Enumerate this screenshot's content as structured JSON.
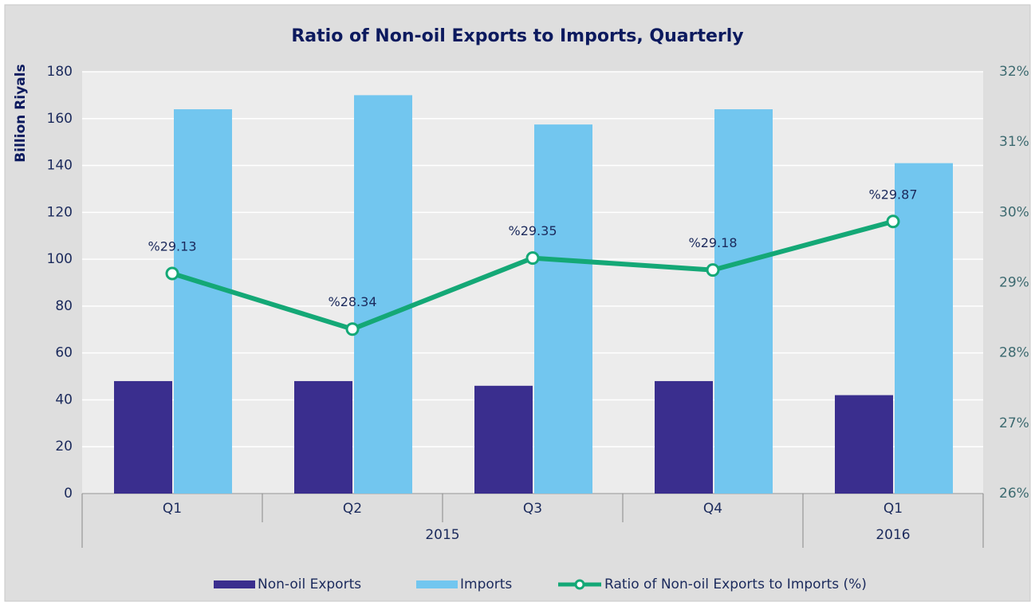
{
  "chart_data": {
    "type": "bar_line",
    "title": "Ratio of Non-oil Exports to Imports, Quarterly",
    "y_label": "Billion Riyals",
    "categories": [
      "Q1",
      "Q2",
      "Q3",
      "Q4",
      "Q1"
    ],
    "x_groups": [
      {
        "label": "2015",
        "count": 4
      },
      {
        "label": "2016",
        "count": 1
      }
    ],
    "series": [
      {
        "name": "Non-oil Exports",
        "type": "bar",
        "color": "#3a2e8e",
        "values": [
          48,
          48,
          46,
          48,
          42
        ]
      },
      {
        "name": "Imports",
        "type": "bar",
        "color": "#72c6ef",
        "values": [
          164,
          170,
          157.5,
          164,
          141
        ]
      },
      {
        "name": "Ratio of Non-oil Exports to Imports (%)",
        "type": "line",
        "axis": "y2",
        "color": "#14a876",
        "values": [
          29.13,
          28.34,
          29.35,
          29.18,
          29.87
        ],
        "value_labels": [
          "%29.13",
          "%28.34",
          "%29.35",
          "%29.18",
          "%29.87"
        ]
      }
    ],
    "ylim": [
      0,
      180
    ],
    "yticks": [
      0,
      20,
      40,
      60,
      80,
      100,
      120,
      140,
      160,
      180
    ],
    "y2lim": [
      26,
      32
    ],
    "y2ticks": [
      {
        "value": 26,
        "label": "26%"
      },
      {
        "value": 27,
        "label": "27%"
      },
      {
        "value": 28,
        "label": "28%"
      },
      {
        "value": 29,
        "label": "29%"
      },
      {
        "value": 30,
        "label": "30%"
      },
      {
        "value": 31,
        "label": "31%"
      },
      {
        "value": 32,
        "label": "32%"
      }
    ],
    "grid": true,
    "legend": "bottom"
  }
}
